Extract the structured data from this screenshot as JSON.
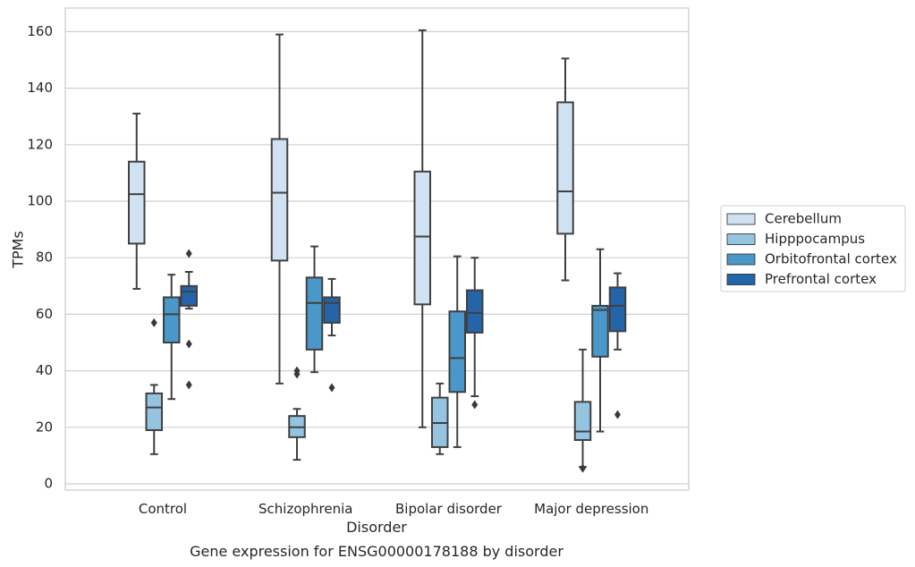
{
  "chart_data": {
    "type": "box",
    "title": "",
    "xlabel": "Disorder",
    "ylabel": "TPMs",
    "caption": "Gene expression for ENSG00000178188 by disorder",
    "ylim": [
      -2,
      168
    ],
    "yticks": [
      0,
      20,
      40,
      60,
      80,
      100,
      120,
      140,
      160
    ],
    "grid": "horizontal",
    "legend_position": "right",
    "categories": [
      "Control",
      "Schizophrenia",
      "Bipolar disorder",
      "Major depression"
    ],
    "series": [
      {
        "name": "Cerebellum",
        "color": "#d0e1f2",
        "boxes": [
          {
            "whisker_low": 69,
            "q1": 85,
            "median": 102.5,
            "q3": 114,
            "whisker_high": 131,
            "outliers": []
          },
          {
            "whisker_low": 35.5,
            "q1": 79,
            "median": 103,
            "q3": 122,
            "whisker_high": 159,
            "outliers": []
          },
          {
            "whisker_low": 20,
            "q1": 63.5,
            "median": 87.5,
            "q3": 110.5,
            "whisker_high": 160.5,
            "outliers": []
          },
          {
            "whisker_low": 72,
            "q1": 88.5,
            "median": 103.5,
            "q3": 135,
            "whisker_high": 150.5,
            "outliers": []
          }
        ]
      },
      {
        "name": "Hipppocampus",
        "color": "#94c4df",
        "boxes": [
          {
            "whisker_low": 10.5,
            "q1": 19,
            "median": 27,
            "q3": 32,
            "whisker_high": 35,
            "outliers": [
              57
            ]
          },
          {
            "whisker_low": 8.5,
            "q1": 16.5,
            "median": 20,
            "q3": 24,
            "whisker_high": 26.5,
            "outliers": [
              38.8,
              40
            ]
          },
          {
            "whisker_low": 10.5,
            "q1": 13,
            "median": 21.5,
            "q3": 30.5,
            "whisker_high": 35.5,
            "outliers": []
          },
          {
            "whisker_low": 6,
            "q1": 15.5,
            "median": 18.5,
            "q3": 29,
            "whisker_high": 47.5,
            "outliers": [
              5.5
            ]
          }
        ]
      },
      {
        "name": "Orbitofrontal cortex",
        "color": "#4a98c9",
        "boxes": [
          {
            "whisker_low": 30,
            "q1": 50,
            "median": 60,
            "q3": 66,
            "whisker_high": 74,
            "outliers": []
          },
          {
            "whisker_low": 39.5,
            "q1": 47.5,
            "median": 64,
            "q3": 73,
            "whisker_high": 84,
            "outliers": []
          },
          {
            "whisker_low": 13,
            "q1": 32.5,
            "median": 44.5,
            "q3": 61,
            "whisker_high": 80.5,
            "outliers": []
          },
          {
            "whisker_low": 18.5,
            "q1": 45,
            "median": 61.5,
            "q3": 63,
            "whisker_high": 83,
            "outliers": []
          }
        ]
      },
      {
        "name": "Prefrontal cortex",
        "color": "#2464a8",
        "boxes": [
          {
            "whisker_low": 62,
            "q1": 63,
            "median": 68,
            "q3": 70,
            "whisker_high": 75,
            "outliers": [
              35,
              49.5,
              81.5
            ]
          },
          {
            "whisker_low": 52.5,
            "q1": 57,
            "median": 64,
            "q3": 66,
            "whisker_high": 72.5,
            "outliers": [
              34
            ]
          },
          {
            "whisker_low": 31,
            "q1": 53.5,
            "median": 60.5,
            "q3": 68.5,
            "whisker_high": 80,
            "outliers": [
              28
            ]
          },
          {
            "whisker_low": 47.5,
            "q1": 54,
            "median": 63,
            "q3": 69.5,
            "whisker_high": 74.5,
            "outliers": [
              24.5
            ]
          }
        ]
      }
    ]
  }
}
